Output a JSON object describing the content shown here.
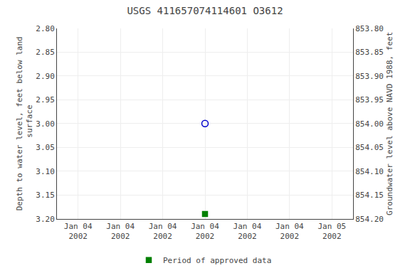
{
  "chart_data": {
    "type": "scatter",
    "title": "USGS 411657074114601 O3612",
    "y_label": "Depth to water level, feet below land\n surface",
    "y2_label": "Groundwater level above NAVD 1988, feet",
    "categories": [
      "Jan 04\n2002",
      "Jan 04\n2002",
      "Jan 04\n2002",
      "Jan 04\n2002",
      "Jan 04\n2002",
      "Jan 04\n2002",
      "Jan 05\n2002"
    ],
    "series": [
      {
        "color": "#0000cc",
        "marker": "circle-open",
        "values": [
          null,
          null,
          null,
          3.0,
          null,
          null,
          null
        ]
      },
      {
        "name": "Period of approved data",
        "color": "#008000",
        "marker": "square",
        "values": [
          null,
          null,
          null,
          3.19,
          null,
          null,
          null
        ]
      }
    ],
    "ylim": [
      3.2,
      2.8
    ],
    "yticks": [
      {
        "value": 2.8,
        "label": "2.80"
      },
      2.85,
      {
        "value": 2.9,
        "label": "2.90"
      },
      2.95,
      {
        "value": 3.0,
        "label": "3.00"
      },
      3.05,
      {
        "value": 3.1,
        "label": "3.10"
      },
      3.15,
      {
        "value": 3.2,
        "label": "3.20"
      }
    ],
    "y2lim": [
      854.2,
      853.8
    ],
    "y2ticks": [
      {
        "value": 853.8,
        "label": "853.80"
      },
      853.85,
      {
        "value": 853.9,
        "label": "853.90"
      },
      853.95,
      {
        "value": 854.0,
        "label": "854.00"
      },
      854.05,
      {
        "value": 854.1,
        "label": "854.10"
      },
      854.15,
      {
        "value": 854.2,
        "label": "854.20"
      }
    ],
    "grid": true,
    "legend": "bottom"
  }
}
